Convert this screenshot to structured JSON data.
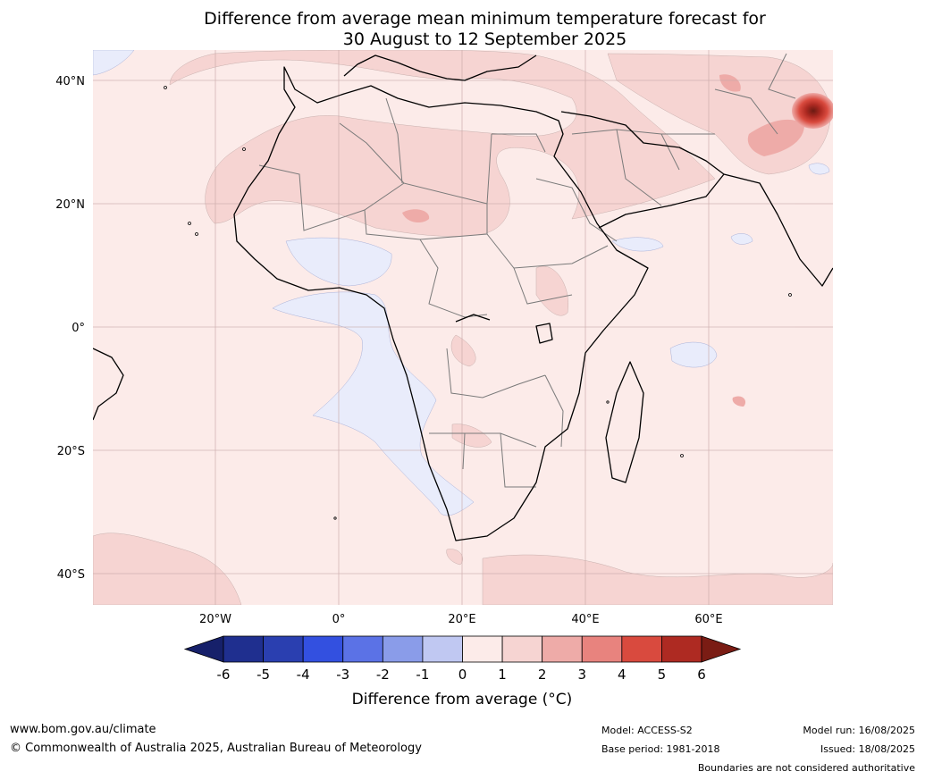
{
  "title": {
    "line1": "Difference from average mean minimum temperature forecast for",
    "line2": "30 August to 12 September 2025"
  },
  "map": {
    "lat_labels": [
      "40°N",
      "20°N",
      "0°",
      "20°S",
      "40°S"
    ],
    "lon_labels": [
      "20°W",
      "0°",
      "20°E",
      "40°E",
      "60°E"
    ],
    "extent": {
      "lon": [
        -40,
        80
      ],
      "lat": [
        -45,
        45
      ]
    }
  },
  "colorbar": {
    "label": "Difference from average (°C)",
    "ticks": [
      "-6",
      "-5",
      "-4",
      "-3",
      "-2",
      "-1",
      "0",
      "1",
      "2",
      "3",
      "4",
      "5",
      "6"
    ],
    "colors": [
      "#1f2f8f",
      "#2a3fb0",
      "#3350e0",
      "#5b72e6",
      "#8a9ce9",
      "#c0c8f2",
      "#e9ecfb",
      "#fcebe9",
      "#f6d4d2",
      "#eeaba8",
      "#e8837e",
      "#d94a3e",
      "#ae2a22"
    ],
    "under_color": "#16206a",
    "over_color": "#7a1c14"
  },
  "footer": {
    "website": "www.bom.gov.au/climate",
    "copyright": "© Commonwealth of Australia 2025, Australian Bureau of Meteorology",
    "model": "Model: ACCESS-S2",
    "base_period": "Base period: 1981-2018",
    "model_run": "Model run: 16/08/2025",
    "issued": "Issued: 18/08/2025",
    "disclaimer": "Boundaries are not considered authoritative"
  }
}
